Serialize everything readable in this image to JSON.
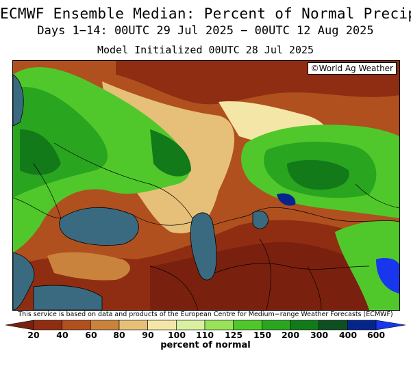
{
  "title": "ECMWF Ensemble Median: Percent of Normal Precip",
  "subtitle": "Days 1−14: 00UTC 29 Jul 2025 − 00UTC 12 Aug 2025",
  "initialized": "Model Initialized 00UTC 28 Jul 2025",
  "watermark": "©World Ag Weather",
  "disclaimer": "This service is based on data and products of the European Centre for Medium−range Weather Forecasts (ECMWF)",
  "legend": {
    "unit_label": "percent of normal",
    "ticks": [
      "20",
      "40",
      "60",
      "80",
      "90",
      "100",
      "110",
      "125",
      "150",
      "200",
      "300",
      "400",
      "600"
    ],
    "colors": {
      "below_20": "#7a200f",
      "20_40": "#8f2d12",
      "40_60": "#b0501f",
      "60_80": "#c9833d",
      "80_90": "#e6c078",
      "90_100": "#f4e6a6",
      "100_110": "#d8f0a0",
      "110_125": "#99e35a",
      "125_150": "#50c82b",
      "150_200": "#2aa520",
      "200_300": "#137a1a",
      "300_400": "#0d4f20",
      "400_600": "#06258c",
      "above_600": "#1836ee"
    },
    "water": "#3a6a80"
  }
}
